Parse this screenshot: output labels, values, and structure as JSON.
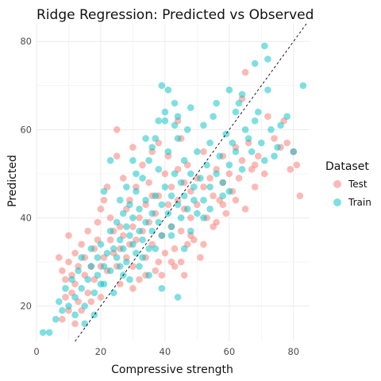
{
  "chart_data": {
    "type": "scatter",
    "title": "Ridge Regression: Predicted vs Observed",
    "xlabel": "Compressive strength",
    "ylabel": "Predicted",
    "xlim": [
      0,
      85
    ],
    "ylim": [
      12,
      84
    ],
    "x_ticks": [
      0,
      20,
      40,
      60,
      80
    ],
    "y_ticks": [
      20,
      40,
      60,
      80
    ],
    "grid": true,
    "reference_line": {
      "style": "dashed",
      "color": "#000000",
      "slope": 1,
      "intercept": 0
    },
    "legend": {
      "title": "Dataset",
      "placement": "right",
      "entries": [
        {
          "label": "Test",
          "color": "#F8766D"
        },
        {
          "label": "Train",
          "color": "#00BFC4"
        }
      ]
    },
    "series": [
      {
        "name": "Test",
        "color": "#F8766D",
        "points": [
          [
            7,
            31
          ],
          [
            8,
            28
          ],
          [
            9,
            22
          ],
          [
            9,
            26
          ],
          [
            10,
            30
          ],
          [
            10,
            36
          ],
          [
            11,
            27
          ],
          [
            12,
            25
          ],
          [
            12,
            32
          ],
          [
            13,
            21
          ],
          [
            13,
            29
          ],
          [
            14,
            34
          ],
          [
            15,
            27
          ],
          [
            15,
            31
          ],
          [
            16,
            23
          ],
          [
            16,
            37
          ],
          [
            17,
            29
          ],
          [
            18,
            33
          ],
          [
            18,
            26
          ],
          [
            19,
            39
          ],
          [
            19,
            35
          ],
          [
            20,
            29
          ],
          [
            20,
            42
          ],
          [
            21,
            44
          ],
          [
            21,
            31
          ],
          [
            22,
            28
          ],
          [
            22,
            47
          ],
          [
            23,
            35
          ],
          [
            23,
            40
          ],
          [
            24,
            32
          ],
          [
            24,
            37
          ],
          [
            25,
            29
          ],
          [
            25,
            54
          ],
          [
            26,
            33
          ],
          [
            26,
            38
          ],
          [
            27,
            36
          ],
          [
            27,
            49
          ],
          [
            28,
            31
          ],
          [
            28,
            42
          ],
          [
            29,
            34
          ],
          [
            29,
            44
          ],
          [
            30,
            38
          ],
          [
            30,
            29
          ],
          [
            31,
            47
          ],
          [
            31,
            35
          ],
          [
            32,
            40
          ],
          [
            32,
            26
          ],
          [
            33,
            52
          ],
          [
            33,
            37
          ],
          [
            34,
            43
          ],
          [
            34,
            31
          ],
          [
            35,
            48
          ],
          [
            35,
            39
          ],
          [
            36,
            55
          ],
          [
            36,
            34
          ],
          [
            37,
            41
          ],
          [
            37,
            28
          ],
          [
            38,
            57
          ],
          [
            38,
            45
          ],
          [
            39,
            36
          ],
          [
            40,
            50
          ],
          [
            40,
            32
          ],
          [
            41,
            43
          ],
          [
            41,
            54
          ],
          [
            42,
            38
          ],
          [
            42,
            47
          ],
          [
            43,
            29
          ],
          [
            43,
            33
          ],
          [
            44,
            44
          ],
          [
            44,
            51
          ],
          [
            45,
            37
          ],
          [
            45,
            30
          ],
          [
            46,
            48
          ],
          [
            46,
            42
          ],
          [
            47,
            34
          ],
          [
            47,
            52
          ],
          [
            48,
            40
          ],
          [
            48,
            46
          ],
          [
            49,
            35
          ],
          [
            50,
            49
          ],
          [
            50,
            43
          ],
          [
            51,
            31
          ],
          [
            52,
            47
          ],
          [
            52,
            55
          ],
          [
            53,
            40
          ],
          [
            54,
            49
          ],
          [
            55,
            45
          ],
          [
            55,
            38
          ],
          [
            56,
            51
          ],
          [
            57,
            44
          ],
          [
            58,
            54
          ],
          [
            58,
            48
          ],
          [
            59,
            41
          ],
          [
            60,
            50
          ],
          [
            61,
            46
          ],
          [
            62,
            56
          ],
          [
            63,
            49
          ],
          [
            64,
            53
          ],
          [
            65,
            42
          ],
          [
            66,
            57
          ],
          [
            67,
            51
          ],
          [
            68,
            47
          ],
          [
            69,
            54
          ],
          [
            71,
            50
          ],
          [
            72,
            63
          ],
          [
            74,
            58
          ],
          [
            76,
            56
          ],
          [
            77,
            62
          ],
          [
            79,
            51
          ],
          [
            80,
            55
          ],
          [
            81,
            52
          ],
          [
            82,
            45
          ],
          [
            65,
            73
          ],
          [
            64,
            67
          ],
          [
            78,
            57
          ],
          [
            45,
            58
          ],
          [
            44,
            62
          ],
          [
            30,
            56
          ],
          [
            25,
            60
          ],
          [
            36,
            45
          ],
          [
            42,
            30
          ],
          [
            39,
            27
          ],
          [
            14,
            19
          ],
          [
            11,
            23
          ],
          [
            8,
            17
          ],
          [
            10,
            19
          ],
          [
            12,
            16
          ],
          [
            17,
            21
          ],
          [
            20,
            22
          ],
          [
            26,
            25
          ],
          [
            30,
            24
          ],
          [
            34,
            27
          ],
          [
            38,
            30
          ],
          [
            46,
            27
          ],
          [
            48,
            36
          ],
          [
            52,
            34
          ],
          [
            56,
            39
          ],
          [
            58,
            43
          ],
          [
            62,
            44
          ],
          [
            68,
            52
          ]
        ]
      },
      {
        "name": "Train",
        "color": "#00BFC4",
        "points": [
          [
            2,
            14
          ],
          [
            4,
            14
          ],
          [
            6,
            17
          ],
          [
            7,
            21
          ],
          [
            8,
            19
          ],
          [
            9,
            24
          ],
          [
            10,
            20
          ],
          [
            11,
            26
          ],
          [
            12,
            22
          ],
          [
            13,
            28
          ],
          [
            14,
            24
          ],
          [
            14,
            31
          ],
          [
            15,
            20
          ],
          [
            16,
            26
          ],
          [
            17,
            29
          ],
          [
            17,
            33
          ],
          [
            18,
            23
          ],
          [
            19,
            31
          ],
          [
            19,
            27
          ],
          [
            20,
            34
          ],
          [
            21,
            29
          ],
          [
            21,
            25
          ],
          [
            22,
            32
          ],
          [
            23,
            37
          ],
          [
            23,
            28
          ],
          [
            24,
            33
          ],
          [
            25,
            39
          ],
          [
            25,
            31
          ],
          [
            26,
            35
          ],
          [
            26,
            29
          ],
          [
            27,
            41
          ],
          [
            27,
            33
          ],
          [
            28,
            38
          ],
          [
            28,
            30
          ],
          [
            29,
            36
          ],
          [
            29,
            43
          ],
          [
            30,
            34
          ],
          [
            30,
            40
          ],
          [
            31,
            32
          ],
          [
            31,
            46
          ],
          [
            32,
            37
          ],
          [
            32,
            42
          ],
          [
            33,
            35
          ],
          [
            33,
            49
          ],
          [
            34,
            39
          ],
          [
            34,
            44
          ],
          [
            35,
            33
          ],
          [
            35,
            53
          ],
          [
            36,
            41
          ],
          [
            36,
            37
          ],
          [
            37,
            45
          ],
          [
            37,
            58
          ],
          [
            38,
            39
          ],
          [
            38,
            51
          ],
          [
            39,
            43
          ],
          [
            39,
            36
          ],
          [
            40,
            47
          ],
          [
            40,
            62
          ],
          [
            41,
            41
          ],
          [
            41,
            55
          ],
          [
            42,
            45
          ],
          [
            42,
            38
          ],
          [
            43,
            50
          ],
          [
            43,
            66
          ],
          [
            44,
            43
          ],
          [
            44,
            58
          ],
          [
            45,
            48
          ],
          [
            45,
            40
          ],
          [
            46,
            53
          ],
          [
            46,
            45
          ],
          [
            47,
            60
          ],
          [
            47,
            42
          ],
          [
            48,
            50
          ],
          [
            48,
            65
          ],
          [
            49,
            47
          ],
          [
            50,
            55
          ],
          [
            50,
            41
          ],
          [
            51,
            49
          ],
          [
            52,
            61
          ],
          [
            52,
            44
          ],
          [
            53,
            52
          ],
          [
            54,
            57
          ],
          [
            54,
            47
          ],
          [
            55,
            63
          ],
          [
            56,
            50
          ],
          [
            57,
            54
          ],
          [
            58,
            48
          ],
          [
            59,
            59
          ],
          [
            60,
            52
          ],
          [
            61,
            57
          ],
          [
            62,
            55
          ],
          [
            63,
            66
          ],
          [
            64,
            51
          ],
          [
            65,
            60
          ],
          [
            66,
            58
          ],
          [
            67,
            55
          ],
          [
            68,
            62
          ],
          [
            69,
            64
          ],
          [
            70,
            57
          ],
          [
            71,
            53
          ],
          [
            72,
            69
          ],
          [
            73,
            60
          ],
          [
            74,
            54
          ],
          [
            75,
            56
          ],
          [
            76,
            61
          ],
          [
            78,
            63
          ],
          [
            80,
            55
          ],
          [
            71,
            79
          ],
          [
            83,
            70
          ],
          [
            68,
            75
          ],
          [
            72,
            76
          ],
          [
            64,
            68
          ],
          [
            60,
            69
          ],
          [
            39,
            70
          ],
          [
            41,
            69
          ],
          [
            43,
            61
          ],
          [
            38,
            62
          ],
          [
            44,
            63
          ],
          [
            56,
            66
          ],
          [
            62,
            64
          ],
          [
            34,
            58
          ],
          [
            30,
            53
          ],
          [
            28,
            47
          ],
          [
            23,
            53
          ],
          [
            21,
            46
          ],
          [
            26,
            44
          ],
          [
            31,
            50
          ],
          [
            36,
            56
          ],
          [
            40,
            64
          ],
          [
            44,
            22
          ],
          [
            39,
            24
          ],
          [
            35,
            27
          ],
          [
            29,
            26
          ],
          [
            24,
            23
          ],
          [
            18,
            18
          ],
          [
            15,
            16
          ],
          [
            12,
            18
          ],
          [
            20,
            25
          ],
          [
            32,
            29
          ],
          [
            48,
            37
          ],
          [
            52,
            40
          ],
          [
            46,
            33
          ],
          [
            27,
            27
          ],
          [
            33,
            31
          ],
          [
            37,
            33
          ],
          [
            42,
            36
          ],
          [
            54,
            42
          ],
          [
            58,
            45
          ],
          [
            49,
            44
          ],
          [
            60,
            46
          ]
        ]
      }
    ]
  }
}
